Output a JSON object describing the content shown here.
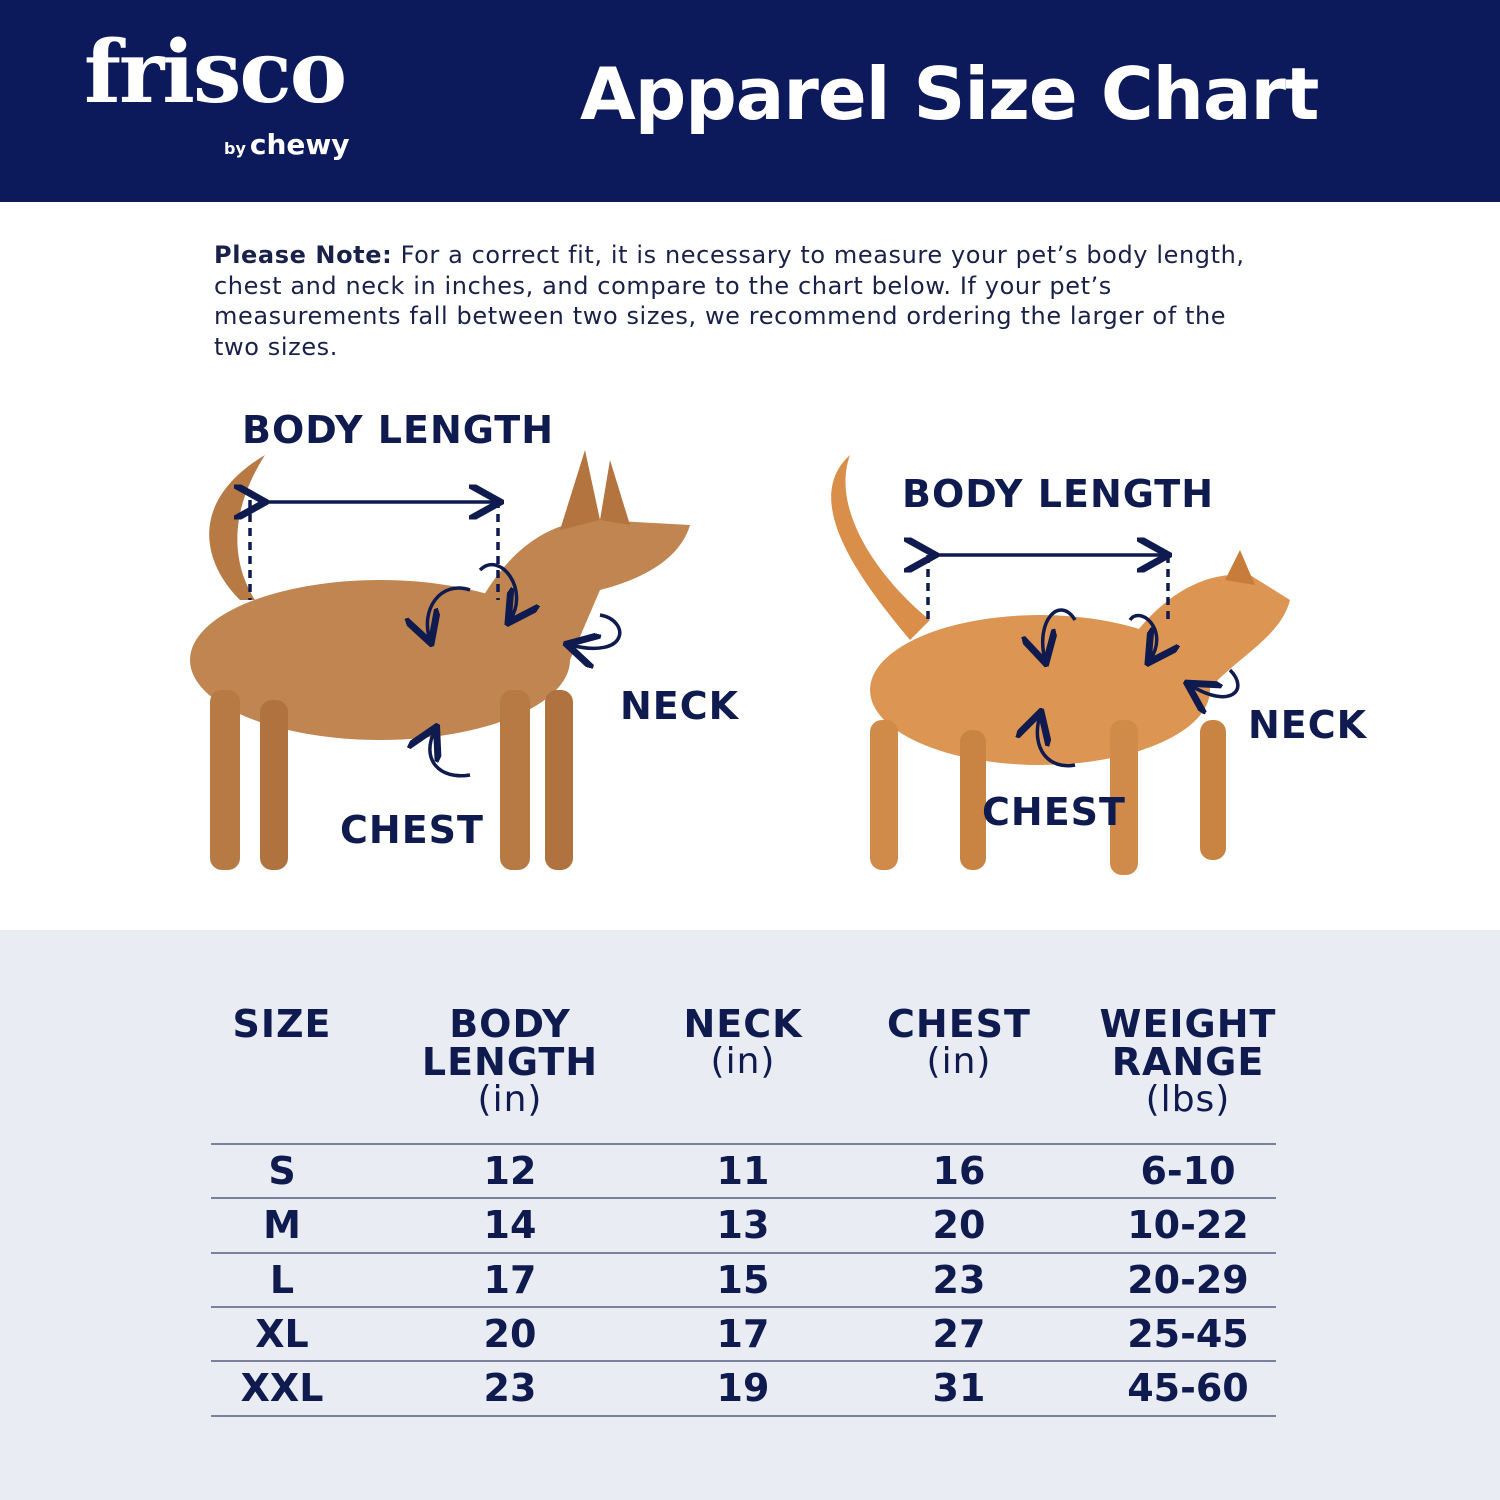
{
  "header": {
    "logo_text": "frisco",
    "logo_byline_prefix": "by",
    "logo_byline_brand": "chewy",
    "title": "Apparel Size Chart",
    "background_color": "#0c1a5b"
  },
  "note": {
    "label": "Please Note:",
    "text": " For a correct fit, it is necessary to measure your pet’s body length, chest and neck in inches, and compare to the chart below. If your pet’s measurements fall between two sizes, we recommend ordering the larger of the two sizes."
  },
  "diagram": {
    "dog": {
      "body_length": "BODY LENGTH",
      "neck": "NECK",
      "chest": "CHEST"
    },
    "cat": {
      "body_length": "BODY LENGTH",
      "neck": "NECK",
      "chest": "CHEST"
    }
  },
  "table": {
    "columns": [
      {
        "title": "SIZE",
        "title2": "",
        "unit": ""
      },
      {
        "title": "BODY",
        "title2": "LENGTH",
        "unit": "(in)"
      },
      {
        "title": "NECK",
        "title2": "",
        "unit": "(in)"
      },
      {
        "title": "CHEST",
        "title2": "",
        "unit": "(in)"
      },
      {
        "title": "WEIGHT",
        "title2": "RANGE",
        "unit": "(lbs)"
      }
    ],
    "rows": [
      [
        "S",
        "12",
        "11",
        "16",
        "6-10"
      ],
      [
        "M",
        "14",
        "13",
        "20",
        "10-22"
      ],
      [
        "L",
        "17",
        "15",
        "23",
        "20-29"
      ],
      [
        "XL",
        "20",
        "17",
        "27",
        "25-45"
      ],
      [
        "XXL",
        "23",
        "19",
        "31",
        "45-60"
      ]
    ]
  }
}
